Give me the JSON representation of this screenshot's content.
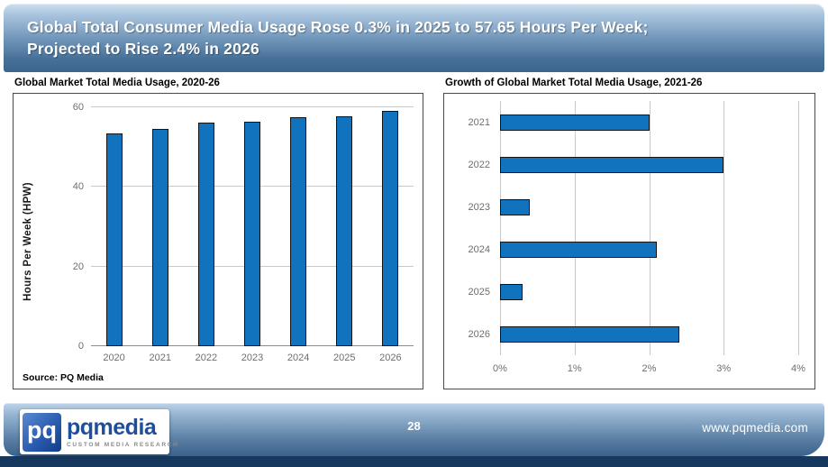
{
  "header": {
    "title_line1": "Global Total Consumer Media Usage Rose 0.3% in 2025 to 57.65 Hours Per Week;",
    "title_line2": "Projected to Rise 2.4% in 2026"
  },
  "chart_data": [
    {
      "type": "bar",
      "orientation": "vertical",
      "title": "Global Market Total Media Usage, 2020-26",
      "categories": [
        "2020",
        "2021",
        "2022",
        "2023",
        "2024",
        "2025",
        "2026"
      ],
      "values": [
        53.5,
        54.5,
        56.1,
        56.3,
        57.5,
        57.65,
        59.0
      ],
      "xlabel": "",
      "ylabel": "Hours Per Week (HPW)",
      "ylim": [
        0,
        60
      ],
      "yticks": [
        0,
        20,
        40,
        60
      ],
      "grid": "horizontal",
      "legend": "none",
      "source": "Source: PQ Media"
    },
    {
      "type": "bar",
      "orientation": "horizontal",
      "title": "Growth of Global Market Total Media Usage, 2021-26",
      "categories": [
        "2021",
        "2022",
        "2023",
        "2024",
        "2025",
        "2026"
      ],
      "values": [
        2.0,
        3.0,
        0.4,
        2.1,
        0.3,
        2.4
      ],
      "value_unit": "%",
      "xlim": [
        0,
        4
      ],
      "xticks": [
        "0%",
        "1%",
        "2%",
        "3%",
        "4%"
      ],
      "grid": "vertical",
      "legend": "none"
    }
  ],
  "footer": {
    "page_number": "28",
    "website": "www.pqmedia.com",
    "logo": {
      "monogram": "pq",
      "name": "pqmedia",
      "tagline": "CUSTOM MEDIA RESEARCH"
    }
  },
  "colors": {
    "bar_fill": "#1172BD",
    "bar_border": "#141414",
    "grid_line": "#C9C9C9",
    "axis_text": "#6E6E6E",
    "header_gradient_top": "#CFDFF0",
    "header_gradient_bottom": "#3C648C",
    "footer_strip_navy": "#16375E",
    "logo_blue": "#1D4F9C"
  }
}
